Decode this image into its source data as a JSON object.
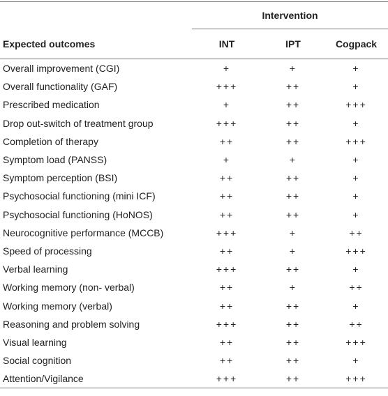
{
  "header": {
    "group": "Intervention",
    "columns": [
      "Expected outcomes",
      "INT",
      "IPT",
      "Cogpack"
    ]
  },
  "rows": [
    [
      "Overall improvement (CGI)",
      "+",
      "+",
      "+"
    ],
    [
      "Overall functionality (GAF)",
      "+++",
      "++",
      "+"
    ],
    [
      "Prescribed medication",
      "+",
      "++",
      "+++"
    ],
    [
      "Drop out-switch of treatment group",
      "+++",
      "++",
      "+"
    ],
    [
      "Completion of therapy",
      "++",
      "++",
      "+++"
    ],
    [
      "Symptom load (PANSS)",
      "+",
      "+",
      "+"
    ],
    [
      "Symptom perception (BSI)",
      "++",
      "++",
      "+"
    ],
    [
      "Psychosocial functioning (mini ICF)",
      "++",
      "++",
      "+"
    ],
    [
      "Psychosocial functioning (HoNOS)",
      "++",
      "++",
      "+"
    ],
    [
      "Neurocognitive performance (MCCB)",
      "+++",
      "+",
      "++"
    ],
    [
      "Speed of processing",
      "++",
      "+",
      "+++"
    ],
    [
      "Verbal learning",
      "+++",
      "++",
      "+"
    ],
    [
      "Working memory (non- verbal)",
      "++",
      "+",
      "++"
    ],
    [
      "Working memory (verbal)",
      "++",
      "++",
      "+"
    ],
    [
      "Reasoning and problem solving",
      "+++",
      "++",
      "++"
    ],
    [
      "Visual learning",
      "++",
      "++",
      "+++"
    ],
    [
      "Social cognition",
      "++",
      "++",
      "+"
    ],
    [
      "Attention/Vigilance",
      "+++",
      "++",
      "+++"
    ]
  ]
}
